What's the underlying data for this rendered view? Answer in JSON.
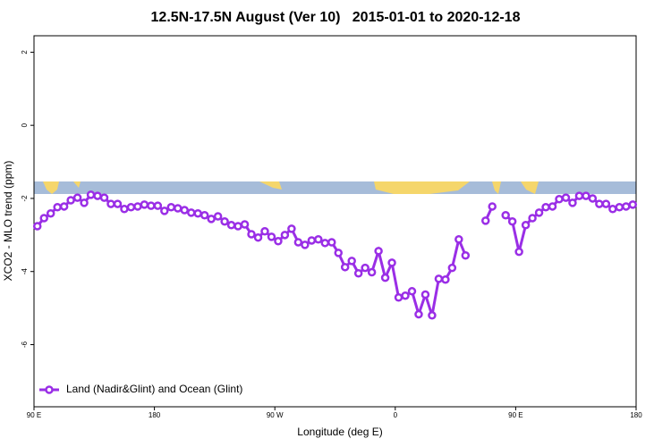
{
  "chart_data": {
    "type": "line",
    "title": "12.5N-17.5N August (Ver 10)   2015-01-01 to 2020-12-18",
    "x_label": "Longitude (deg E)",
    "y_label": "XCO2 - MLO trend (ppm)",
    "xlim": [
      90,
      540
    ],
    "xticks": [
      {
        "value": 90,
        "label": "90 E"
      },
      {
        "value": 180,
        "label": "180"
      },
      {
        "value": 270,
        "label": "90 W"
      },
      {
        "value": 360,
        "label": "0"
      },
      {
        "value": 450,
        "label": "90 E"
      },
      {
        "value": 540,
        "label": "180"
      }
    ],
    "ylim": [
      -7.7,
      2.45
    ],
    "yticks": [
      2,
      0,
      -2,
      -4,
      -6
    ],
    "legend_position": "bottom-left",
    "x": [
      92.5,
      97.5,
      102.5,
      107.5,
      112.5,
      117.5,
      122.5,
      127.5,
      132.5,
      137.5,
      142.5,
      147.5,
      152.5,
      157.5,
      162.5,
      167.5,
      172.5,
      177.5,
      182.5,
      187.5,
      192.5,
      197.5,
      202.5,
      207.5,
      212.5,
      217.5,
      222.5,
      227.5,
      232.5,
      237.5,
      242.5,
      247.5,
      252.5,
      257.5,
      262.5,
      267.5,
      272.5,
      277.5,
      282.5,
      287.5,
      292.5,
      297.5,
      302.5,
      307.5,
      312.5,
      317.5,
      322.5,
      327.5,
      332.5,
      337.5,
      342.5,
      347.5,
      352.5,
      357.5,
      362.5,
      367.5,
      372.5,
      377.5,
      382.5,
      387.5,
      392.5,
      397.5,
      402.5,
      407.5,
      412.5,
      417.5,
      422.5,
      427.5,
      432.5,
      437.5,
      442.5,
      447.5,
      452.5,
      457.5,
      462.5,
      467.5,
      472.5,
      477.5,
      482.5,
      487.5,
      492.5,
      497.5,
      502.5,
      507.5,
      512.5,
      517.5,
      522.5,
      527.5,
      532.5,
      537.5
    ],
    "series": [
      {
        "name": "Land (Nadir&Glint) and Ocean (Glint)",
        "color": "#9a2ee6",
        "values": [
          -2.76,
          -2.54,
          -2.41,
          -2.24,
          -2.22,
          -2.05,
          -1.98,
          -2.12,
          -1.9,
          -1.93,
          -1.98,
          -2.15,
          -2.15,
          -2.29,
          -2.24,
          -2.22,
          -2.17,
          -2.2,
          -2.2,
          -2.34,
          -2.24,
          -2.27,
          -2.32,
          -2.39,
          -2.41,
          -2.46,
          -2.56,
          -2.49,
          -2.63,
          -2.73,
          -2.76,
          -2.71,
          -2.98,
          -3.07,
          -2.9,
          -3.05,
          -3.17,
          -3.0,
          -2.83,
          -3.2,
          -3.27,
          -3.15,
          -3.12,
          -3.22,
          -3.2,
          -3.49,
          -3.88,
          -3.71,
          -4.05,
          -3.9,
          -4.02,
          -3.44,
          -4.17,
          -3.76,
          -4.71,
          -4.66,
          -4.54,
          -5.17,
          -4.63,
          -5.2,
          -4.2,
          -4.22,
          -3.9,
          -3.12,
          -3.56,
          null,
          null,
          -2.61,
          -2.22,
          null,
          -2.46,
          -2.63,
          -3.46,
          -2.73,
          -2.54,
          -2.39,
          -2.24,
          -2.22,
          -2.02,
          -1.98,
          -2.12,
          -1.93,
          -1.93,
          -2.0,
          -2.15,
          -2.15,
          -2.29,
          -2.24,
          -2.22,
          -2.17
        ]
      }
    ]
  }
}
